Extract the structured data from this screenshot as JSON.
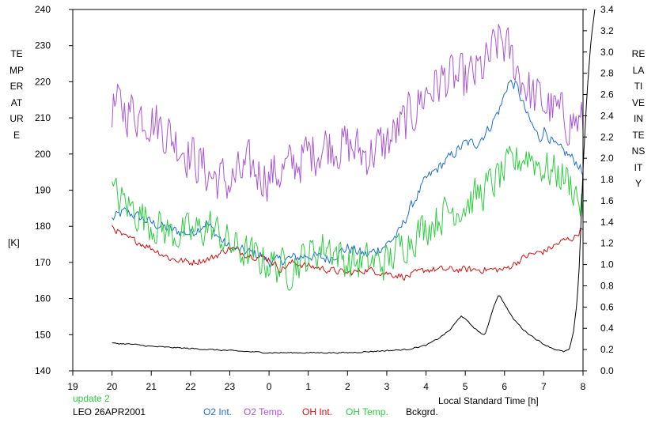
{
  "chart_data": {
    "type": "line",
    "left_axis_label": "TEMPERATURE",
    "left_axis_unit": "[K]",
    "right_axis_label": "RELATIVE INTENSITY",
    "xlabel": "Local Standard Time [h]",
    "x_ticks": [
      "19",
      "20",
      "21",
      "22",
      "23",
      "0",
      "1",
      "2",
      "3",
      "4",
      "5",
      "6",
      "7",
      "8"
    ],
    "xlim": [
      19,
      32
    ],
    "ylim_left": [
      140,
      240
    ],
    "y_ticks_left": [
      140,
      150,
      160,
      170,
      180,
      190,
      200,
      210,
      220,
      230,
      240
    ],
    "ylim_right": [
      0.0,
      3.4
    ],
    "y_ticks_right": [
      "0.0",
      "0.2",
      "0.4",
      "0.6",
      "0.8",
      "1.0",
      "1.2",
      "1.4",
      "1.6",
      "1.8",
      "2.0",
      "2.2",
      "2.4",
      "2.6",
      "2.8",
      "3.0",
      "3.2",
      "3.4"
    ],
    "series": [
      {
        "name": "O2 Int.",
        "axis": "left",
        "color": "#1f6fd1",
        "noise": 2.0,
        "x": [
          20,
          20.3,
          20.6,
          21,
          21.5,
          22,
          22.4,
          22.8,
          23,
          23.4,
          23.8,
          24,
          24.5,
          25,
          25.5,
          26,
          26.5,
          27,
          27.3,
          27.6,
          28,
          28.5,
          29,
          29.3,
          29.6,
          29.9,
          30.1,
          30.3,
          30.6,
          30.9,
          31,
          31.3,
          31.6,
          31.9,
          32
        ],
        "y": [
          182,
          184,
          183,
          181,
          179,
          178,
          181,
          176,
          174,
          173,
          172,
          170,
          171,
          172,
          171,
          174,
          172,
          175,
          178,
          185,
          193,
          198,
          203,
          203,
          207,
          213,
          220,
          219,
          210,
          204,
          207,
          202,
          200,
          197,
          194
        ]
      },
      {
        "name": "O2 Temp.",
        "axis": "left",
        "color": "#a855d6",
        "noise": 9.0,
        "x": [
          20,
          20.5,
          21,
          21.5,
          22,
          22.5,
          23,
          23.5,
          24,
          24.5,
          25,
          25.5,
          26,
          26.5,
          27,
          27.5,
          28,
          28.5,
          29,
          29.5,
          29.9,
          30.3,
          30.7,
          31,
          31.5,
          32
        ],
        "y": [
          213,
          212,
          210,
          205,
          200,
          194,
          192,
          196,
          194,
          196,
          200,
          203,
          202,
          200,
          203,
          209,
          217,
          221,
          220,
          224,
          232,
          224,
          216,
          214,
          210,
          208
        ]
      },
      {
        "name": "OH Int.",
        "axis": "left",
        "color": "#d01010",
        "noise": 1.3,
        "x": [
          20,
          20.3,
          20.6,
          21,
          21.5,
          22,
          22.5,
          23,
          23.5,
          24,
          24.3,
          24.6,
          25,
          25.5,
          26,
          26.5,
          27,
          27.5,
          28,
          28.5,
          29,
          29.5,
          30,
          30.3,
          30.6,
          31,
          31.5,
          31.8,
          32
        ],
        "y": [
          180,
          177,
          176,
          174,
          171,
          170,
          171,
          174,
          172,
          171,
          168,
          170,
          169,
          168,
          167,
          168,
          167,
          166,
          168,
          168,
          168,
          168,
          168,
          170,
          172,
          173,
          176,
          177,
          180
        ]
      },
      {
        "name": "OH Temp.",
        "axis": "left",
        "color": "#2ecc40",
        "noise": 7.0,
        "x": [
          20,
          20.5,
          21,
          21.5,
          22,
          22.5,
          23,
          23.5,
          24,
          24.5,
          25,
          25.5,
          26,
          26.5,
          27,
          27.5,
          28,
          28.5,
          29,
          29.5,
          30,
          30.3,
          30.6,
          31,
          31.5,
          31.8,
          32
        ],
        "y": [
          189,
          185,
          181,
          178,
          178,
          180,
          175,
          172,
          170,
          168,
          172,
          175,
          170,
          170,
          170,
          176,
          180,
          184,
          186,
          190,
          195,
          198,
          200,
          196,
          194,
          190,
          184
        ]
      },
      {
        "name": "Bckgrd.",
        "axis": "right",
        "color": "#000000",
        "noise": 0.008,
        "x": [
          20,
          20.5,
          21,
          21.5,
          22,
          22.5,
          23,
          23.5,
          24,
          24.5,
          25,
          25.5,
          26,
          26.5,
          27,
          27.5,
          28,
          28.3,
          28.6,
          28.9,
          29.1,
          29.3,
          29.5,
          29.7,
          29.85,
          30,
          30.2,
          30.5,
          30.8,
          31,
          31.3,
          31.5,
          31.65,
          31.75,
          31.85,
          31.9,
          31.95,
          32,
          32.1,
          32.2,
          32.3
        ],
        "y": [
          0.26,
          0.25,
          0.23,
          0.22,
          0.21,
          0.2,
          0.19,
          0.18,
          0.17,
          0.17,
          0.17,
          0.17,
          0.17,
          0.18,
          0.19,
          0.2,
          0.24,
          0.3,
          0.38,
          0.52,
          0.45,
          0.38,
          0.33,
          0.58,
          0.72,
          0.63,
          0.5,
          0.38,
          0.3,
          0.25,
          0.2,
          0.18,
          0.2,
          0.35,
          0.65,
          0.95,
          1.4,
          1.9,
          2.6,
          3.1,
          3.4
        ]
      }
    ],
    "legend": [
      "O2 Int.",
      "O2 Temp.",
      "OH Int.",
      "OH Temp.",
      "Bckgrd."
    ],
    "legend_placement": "bottom",
    "grid": false
  },
  "footer": {
    "update_text": "update 2",
    "update_color": "#2ecc40",
    "station_date": "LEO 26APR2001"
  }
}
